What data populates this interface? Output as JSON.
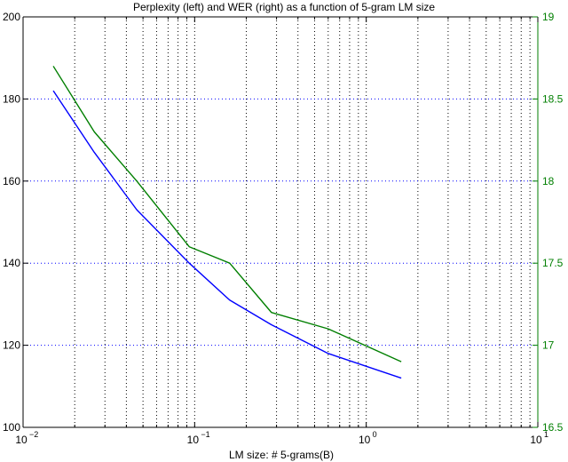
{
  "chart_data": {
    "type": "line",
    "title": "Perplexity (left) and WER (right) as a function of 5-gram LM size",
    "xlabel": "LM size: # 5-grams(B)",
    "ylabel_left": "",
    "ylabel_right": "",
    "x_scale": "log",
    "xlim": [
      0.01,
      10
    ],
    "ylim_left": [
      100,
      200
    ],
    "ylim_right": [
      16.5,
      19
    ],
    "grid": true,
    "x_ticks": [
      {
        "value": 0.01,
        "base": "10",
        "exp": "−2"
      },
      {
        "value": 0.1,
        "base": "10",
        "exp": "−1"
      },
      {
        "value": 1,
        "base": "10",
        "exp": "0"
      },
      {
        "value": 10,
        "base": "10",
        "exp": "1"
      }
    ],
    "y_ticks_left": [
      "100",
      "120",
      "140",
      "160",
      "180",
      "200"
    ],
    "y_ticks_right": [
      "16.5",
      "17",
      "17.5",
      "18",
      "18.5",
      "19"
    ],
    "series": [
      {
        "axis": "left",
        "color": "#0000ff",
        "x": [
          0.015,
          0.026,
          0.046,
          0.093,
          0.16,
          0.28,
          0.6,
          1.6
        ],
        "values": [
          182,
          167,
          153,
          140,
          131,
          125,
          118,
          112
        ]
      },
      {
        "axis": "right",
        "color": "#007f00",
        "x": [
          0.015,
          0.026,
          0.046,
          0.093,
          0.16,
          0.28,
          0.6,
          1.6
        ],
        "values": [
          18.7,
          18.3,
          18.0,
          17.6,
          17.5,
          17.2,
          17.1,
          16.9
        ]
      }
    ],
    "colors": {
      "axis": "#000000",
      "right_axis": "#007f00",
      "h_grid": "#0000ff",
      "v_grid": "#000000"
    }
  }
}
